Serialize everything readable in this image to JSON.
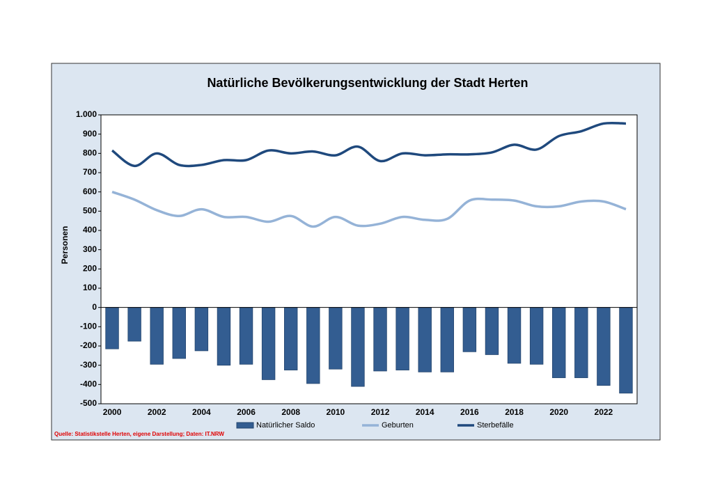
{
  "chart_data": {
    "type": "bar_line",
    "title": "Natürliche Bevölkerungsentwicklung der Stadt Herten",
    "y_label": "Personen",
    "source": "Quelle: Statistikstelle Herten, eigene Darstellung; Daten: IT.NRW",
    "categories": [
      "2000",
      null,
      "2002",
      null,
      "2004",
      null,
      "2006",
      null,
      "2008",
      null,
      "2010",
      null,
      "2012",
      null,
      "2014",
      null,
      "2016",
      null,
      "2018",
      null,
      "2020",
      null,
      "2022",
      null
    ],
    "series": [
      {
        "name": "Natürlicher Saldo",
        "type": "bar",
        "color": "#335d91",
        "values": [
          -215,
          -175,
          -295,
          -265,
          -225,
          -300,
          -295,
          -375,
          -325,
          -395,
          -320,
          -410,
          -330,
          -325,
          -335,
          -335,
          -230,
          -245,
          -290,
          -295,
          -365,
          -365,
          -405,
          -445
        ]
      },
      {
        "name": "Geburten",
        "type": "line",
        "color": "#95b3d7",
        "values": [
          600,
          560,
          505,
          475,
          510,
          470,
          470,
          445,
          475,
          420,
          470,
          425,
          435,
          470,
          455,
          460,
          555,
          560,
          555,
          525,
          525,
          550,
          550,
          510
        ]
      },
      {
        "name": "Sterbefälle",
        "type": "line",
        "color": "#1f497d",
        "values": [
          815,
          735,
          800,
          740,
          740,
          765,
          765,
          815,
          800,
          810,
          790,
          835,
          760,
          800,
          790,
          795,
          795,
          805,
          845,
          820,
          890,
          915,
          955,
          955
        ]
      }
    ],
    "ylim": [
      -500,
      1000
    ],
    "yticks": [
      -500,
      -400,
      -300,
      -200,
      -100,
      0,
      100,
      200,
      300,
      400,
      500,
      600,
      700,
      800,
      900,
      {
        "value": 1000,
        "label": "1.000"
      }
    ],
    "legend": "bottom"
  }
}
